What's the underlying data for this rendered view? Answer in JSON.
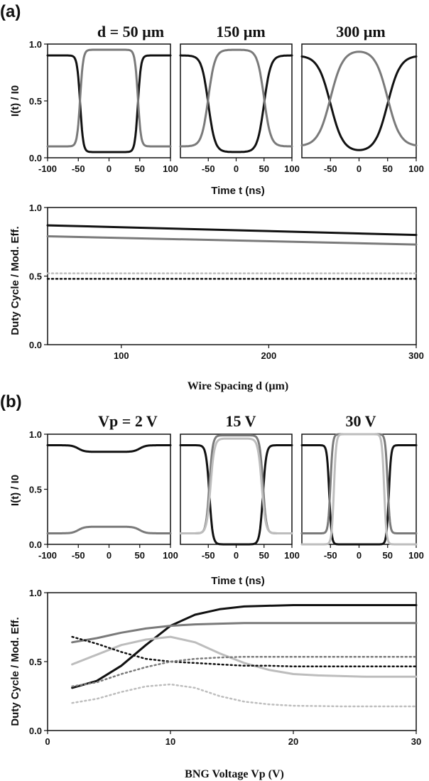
{
  "panel_labels": [
    "(a)",
    "(b)"
  ],
  "axis_labels": {
    "a_top_y": "I(t) / I0",
    "a_top_x": "Time t (ns)",
    "a_bottom_y": "Duty Cycle / Mod. Eff.",
    "a_bottom_x": "Wire Spacing d (µm)",
    "b_top_y": "I(t) / I0",
    "b_top_x": "Time t (ns)",
    "b_bottom_y": "Duty Cycle / Mod. Eff.",
    "b_bottom_x": "BNG Voltage Vp (V)"
  },
  "colors": {
    "black": "#111111",
    "dark_gray": "#7a7a7a",
    "light_gray": "#bdbdbd"
  },
  "chart_data": [
    {
      "type": "line",
      "panel": "a",
      "title": "d = 50 µm",
      "xlim": [
        -100,
        100
      ],
      "ylim": [
        0,
        1
      ],
      "xticks": [
        -100,
        -50,
        0,
        50,
        100
      ],
      "yticks": [
        0.0,
        0.5,
        1.0
      ],
      "series": [
        {
          "color": "black",
          "low": 0.05,
          "high": 0.9,
          "edge_ns": 47,
          "width_ns": 2.5,
          "inverted": true
        },
        {
          "color": "gray",
          "low": 0.1,
          "high": 0.95,
          "edge_ns": 47,
          "width_ns": 2.5,
          "inverted": false
        }
      ]
    },
    {
      "type": "line",
      "panel": "a",
      "title": "150 µm",
      "xlim": [
        -100,
        100
      ],
      "ylim": [
        0,
        1
      ],
      "xticks": [
        -50,
        0,
        50,
        100
      ],
      "series": [
        {
          "color": "black",
          "low": 0.05,
          "high": 0.9,
          "edge_ns": 50,
          "width_ns": 6,
          "inverted": true
        },
        {
          "color": "gray",
          "low": 0.1,
          "high": 0.95,
          "edge_ns": 50,
          "width_ns": 6,
          "inverted": false
        }
      ]
    },
    {
      "type": "line",
      "panel": "a",
      "title": "300 µm",
      "xlim": [
        -100,
        100
      ],
      "ylim": [
        0,
        1
      ],
      "xticks": [
        -50,
        0,
        50,
        100
      ],
      "series": [
        {
          "color": "black",
          "low": 0.05,
          "high": 0.9,
          "edge_ns": 50,
          "width_ns": 11,
          "inverted": true
        },
        {
          "color": "gray",
          "low": 0.1,
          "high": 0.95,
          "edge_ns": 50,
          "width_ns": 11,
          "inverted": false
        }
      ]
    },
    {
      "type": "line",
      "panel": "a",
      "title": "",
      "xlim": [
        50,
        300
      ],
      "ylim": [
        0,
        1
      ],
      "xticks": [
        100,
        200,
        300
      ],
      "yticks": [
        0.0,
        0.5,
        1.0
      ],
      "series": [
        {
          "color": "black",
          "style": "solid",
          "x": [
            50,
            300
          ],
          "y": [
            0.87,
            0.8
          ]
        },
        {
          "color": "gray",
          "style": "solid",
          "x": [
            50,
            300
          ],
          "y": [
            0.79,
            0.73
          ]
        },
        {
          "color": "light_gray",
          "style": "dotted",
          "x": [
            50,
            300
          ],
          "y": [
            0.52,
            0.52
          ]
        },
        {
          "color": "black",
          "style": "dotted",
          "x": [
            50,
            300
          ],
          "y": [
            0.48,
            0.48
          ]
        }
      ]
    },
    {
      "type": "line",
      "panel": "b",
      "title": "Vp = 2 V",
      "xlim": [
        -100,
        100
      ],
      "ylim": [
        0,
        1
      ],
      "xticks": [
        -100,
        -50,
        0,
        50,
        100
      ],
      "yticks": [
        0.0,
        0.5,
        1.0
      ],
      "series": [
        {
          "color": "black",
          "low": 0.84,
          "high": 0.9,
          "edge_ns": 50,
          "width_ns": 5,
          "inverted": true
        },
        {
          "color": "gray",
          "low": 0.1,
          "high": 0.16,
          "edge_ns": 50,
          "width_ns": 5,
          "inverted": false
        }
      ]
    },
    {
      "type": "line",
      "panel": "b",
      "title": "15 V",
      "xlim": [
        -100,
        100
      ],
      "ylim": [
        0,
        1
      ],
      "xticks": [
        -50,
        0,
        50,
        100
      ],
      "series": [
        {
          "color": "black",
          "low": 0.0,
          "high": 0.9,
          "edge_ns": 48,
          "width_ns": 3,
          "inverted": true
        },
        {
          "color": "gray",
          "low": 0.1,
          "high": 0.99,
          "edge_ns": 48,
          "width_ns": 3,
          "inverted": false
        },
        {
          "color": "light_gray",
          "low": 0.1,
          "high": 0.96,
          "edge_ns": 46,
          "width_ns": 3.5,
          "inverted": false
        }
      ]
    },
    {
      "type": "line",
      "panel": "b",
      "title": "30 V",
      "xlim": [
        -100,
        100
      ],
      "ylim": [
        0,
        1
      ],
      "xticks": [
        -50,
        0,
        50,
        100
      ],
      "series": [
        {
          "color": "black",
          "low": 0.0,
          "high": 0.9,
          "edge_ns": 52,
          "width_ns": 2,
          "inverted": true
        },
        {
          "color": "gray",
          "low": 0.1,
          "high": 1.0,
          "edge_ns": 50,
          "width_ns": 2,
          "inverted": false
        },
        {
          "color": "light_gray",
          "low": 0.0,
          "high": 1.0,
          "edge_ns": 44,
          "width_ns": 2,
          "inverted": false
        }
      ]
    },
    {
      "type": "line",
      "panel": "b",
      "title": "",
      "xlim": [
        0,
        30
      ],
      "ylim": [
        0,
        1
      ],
      "xticks": [
        0,
        10,
        20,
        30
      ],
      "yticks": [
        0.0,
        0.5,
        1.0
      ],
      "series": [
        {
          "color": "black",
          "style": "solid",
          "x": [
            2,
            4,
            6,
            8,
            10,
            12,
            14,
            16,
            18,
            20,
            22,
            24,
            26,
            28,
            30
          ],
          "y": [
            0.31,
            0.36,
            0.47,
            0.62,
            0.76,
            0.84,
            0.88,
            0.9,
            0.905,
            0.91,
            0.91,
            0.91,
            0.91,
            0.91,
            0.91
          ]
        },
        {
          "color": "gray",
          "style": "solid",
          "x": [
            2,
            4,
            6,
            8,
            10,
            12,
            14,
            16,
            18,
            20,
            22,
            24,
            26,
            28,
            30
          ],
          "y": [
            0.64,
            0.67,
            0.71,
            0.74,
            0.76,
            0.77,
            0.775,
            0.78,
            0.78,
            0.78,
            0.78,
            0.78,
            0.78,
            0.78,
            0.78
          ]
        },
        {
          "color": "light_gray",
          "style": "solid",
          "x": [
            2,
            4,
            6,
            8,
            10,
            12,
            14,
            16,
            18,
            20,
            22,
            24,
            26,
            28,
            30
          ],
          "y": [
            0.48,
            0.55,
            0.62,
            0.66,
            0.68,
            0.64,
            0.56,
            0.49,
            0.44,
            0.41,
            0.4,
            0.395,
            0.39,
            0.39,
            0.39
          ]
        },
        {
          "color": "black",
          "style": "dotted",
          "x": [
            2,
            4,
            6,
            8,
            10,
            12,
            14,
            16,
            18,
            20,
            22,
            24,
            26,
            28,
            30
          ],
          "y": [
            0.68,
            0.63,
            0.57,
            0.52,
            0.5,
            0.49,
            0.48,
            0.47,
            0.47,
            0.465,
            0.465,
            0.465,
            0.465,
            0.465,
            0.465
          ]
        },
        {
          "color": "gray",
          "style": "dotted",
          "x": [
            2,
            4,
            6,
            8,
            10,
            12,
            14,
            16,
            18,
            20,
            22,
            24,
            26,
            28,
            30
          ],
          "y": [
            0.32,
            0.35,
            0.41,
            0.46,
            0.5,
            0.52,
            0.53,
            0.535,
            0.535,
            0.535,
            0.535,
            0.535,
            0.535,
            0.535,
            0.535
          ]
        },
        {
          "color": "light_gray",
          "style": "dotted",
          "x": [
            2,
            4,
            6,
            8,
            10,
            12,
            14,
            16,
            18,
            20,
            22,
            24,
            26,
            28,
            30
          ],
          "y": [
            0.2,
            0.23,
            0.28,
            0.32,
            0.335,
            0.31,
            0.25,
            0.21,
            0.19,
            0.18,
            0.178,
            0.175,
            0.175,
            0.175,
            0.175
          ]
        }
      ]
    }
  ]
}
